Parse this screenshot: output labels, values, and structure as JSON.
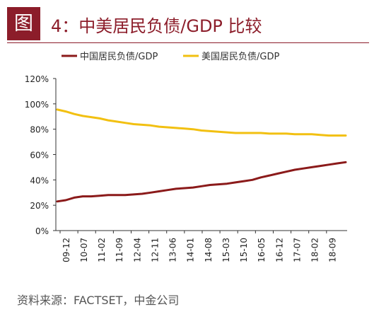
{
  "figure": {
    "badge": "图",
    "title": "4：中美居民负债/GDP 比较",
    "source": "资料来源：FACTSET，中金公司"
  },
  "colors": {
    "accent": "#8c1d2a",
    "china_series": "#8b1a1a",
    "us_series": "#f2c011",
    "axis": "#333333"
  },
  "chart_data": {
    "type": "line",
    "title": "",
    "xlabel": "",
    "ylabel": "",
    "ylim": [
      0,
      120
    ],
    "y_ticks": [
      "0%",
      "20%",
      "40%",
      "60%",
      "80%",
      "100%",
      "120%"
    ],
    "y_tick_values": [
      0,
      20,
      40,
      60,
      80,
      100,
      120
    ],
    "x_tick_labels": [
      "09-12",
      "10-07",
      "11-02",
      "11-09",
      "12-04",
      "12-11",
      "13-06",
      "14-01",
      "14-08",
      "15-03",
      "15-10",
      "16-05",
      "16-12",
      "17-07",
      "18-02",
      "18-09"
    ],
    "legend_position": "top",
    "grid": false,
    "series": [
      {
        "name": "中国居民负债/GDP",
        "color": "#8b1a1a",
        "values": [
          23,
          24,
          26,
          27,
          27,
          27.5,
          28,
          28,
          28,
          28.5,
          29,
          30,
          31,
          32,
          33,
          33.5,
          34,
          35,
          36,
          36.5,
          37,
          38,
          39,
          40,
          42,
          43.5,
          45,
          46.5,
          48,
          49,
          50,
          51,
          52,
          53,
          54
        ]
      },
      {
        "name": "美国居民负债/GDP",
        "color": "#f2c011",
        "values": [
          95.5,
          94,
          92,
          90.5,
          89.5,
          88.5,
          87,
          86,
          85,
          84,
          83.5,
          83,
          82,
          81.5,
          81,
          80.5,
          80,
          79,
          78.5,
          78,
          77.5,
          77,
          77,
          77,
          77,
          76.5,
          76.5,
          76.5,
          76,
          76,
          76,
          75.5,
          75,
          75,
          75
        ]
      }
    ]
  }
}
